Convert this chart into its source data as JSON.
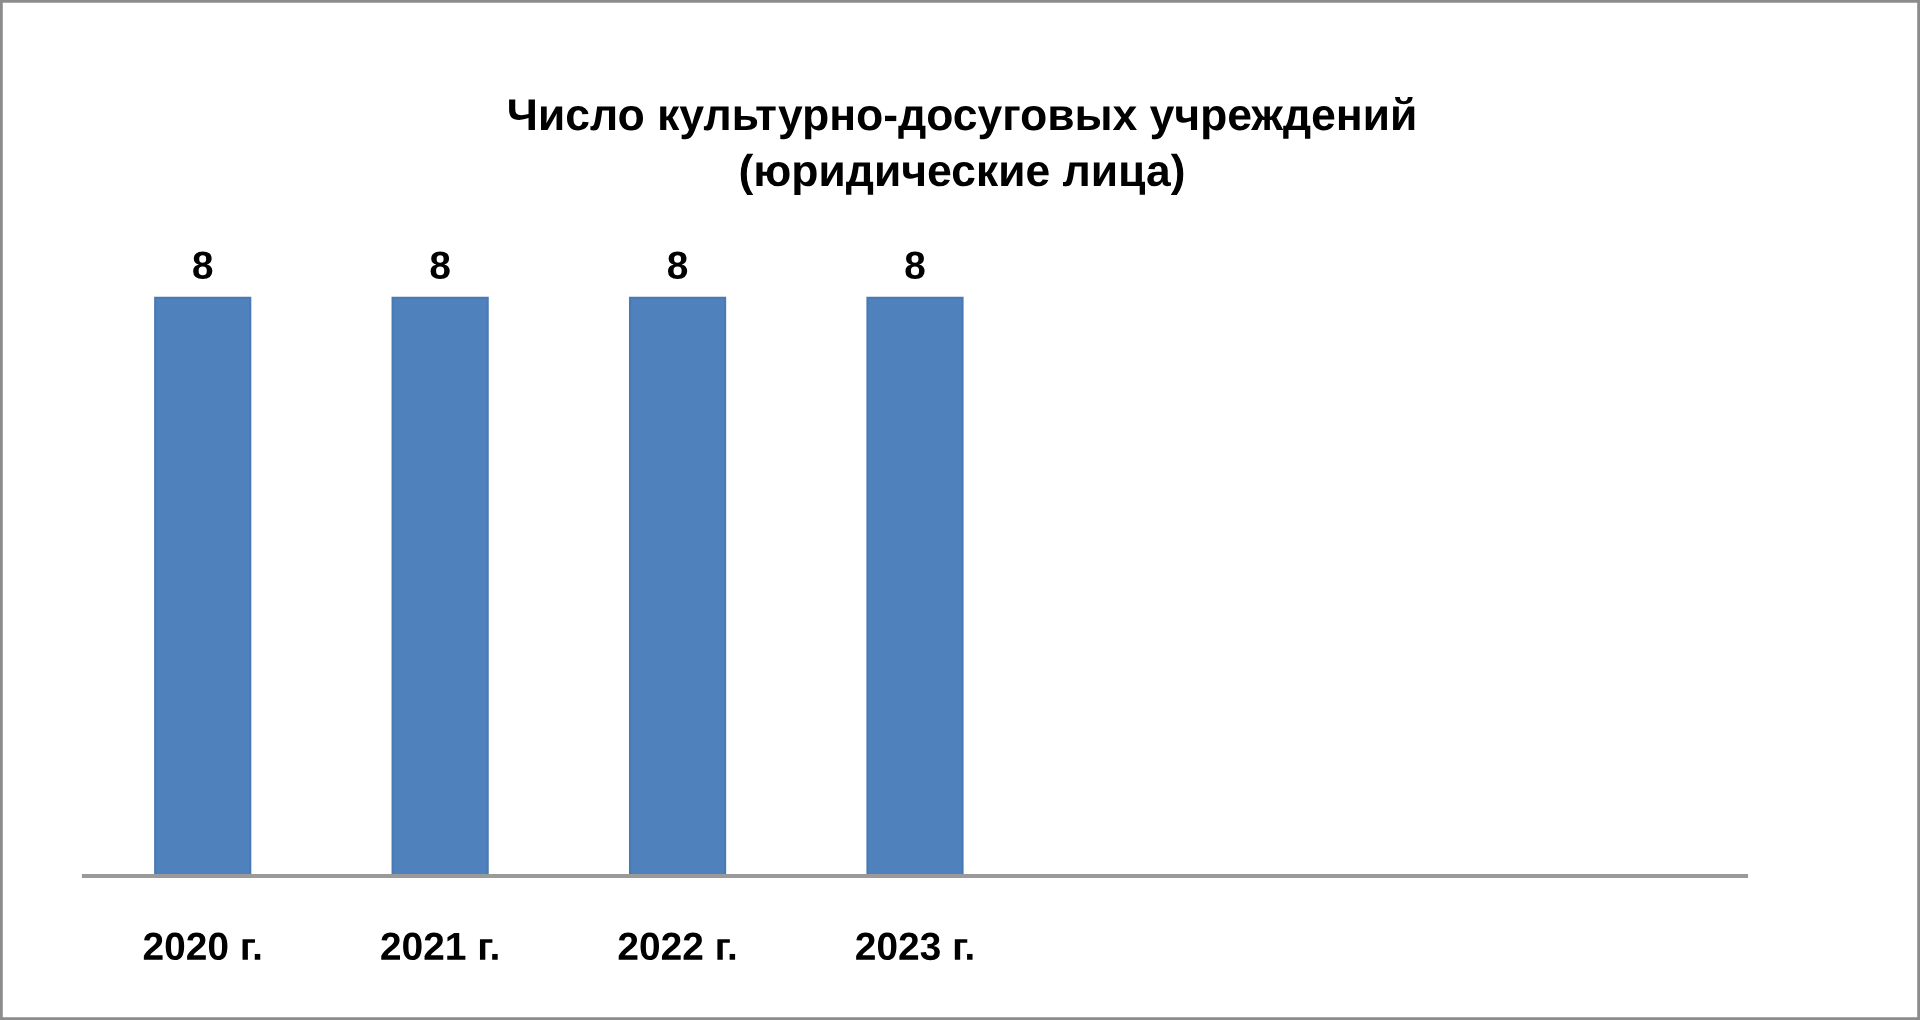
{
  "chart_data": {
    "type": "bar",
    "title": "Число культурно-досуговых учреждений\n(юридические лица)",
    "categories": [
      "2020 г.",
      "2021 г.",
      "2022 г.",
      "2023 г.",
      null,
      null,
      null
    ],
    "series": [
      {
        "color": "#4f81bd",
        "values": [
          8,
          8,
          8,
          8,
          null,
          null,
          null
        ]
      }
    ],
    "data_labels": true,
    "tick_labels": "x"
  }
}
